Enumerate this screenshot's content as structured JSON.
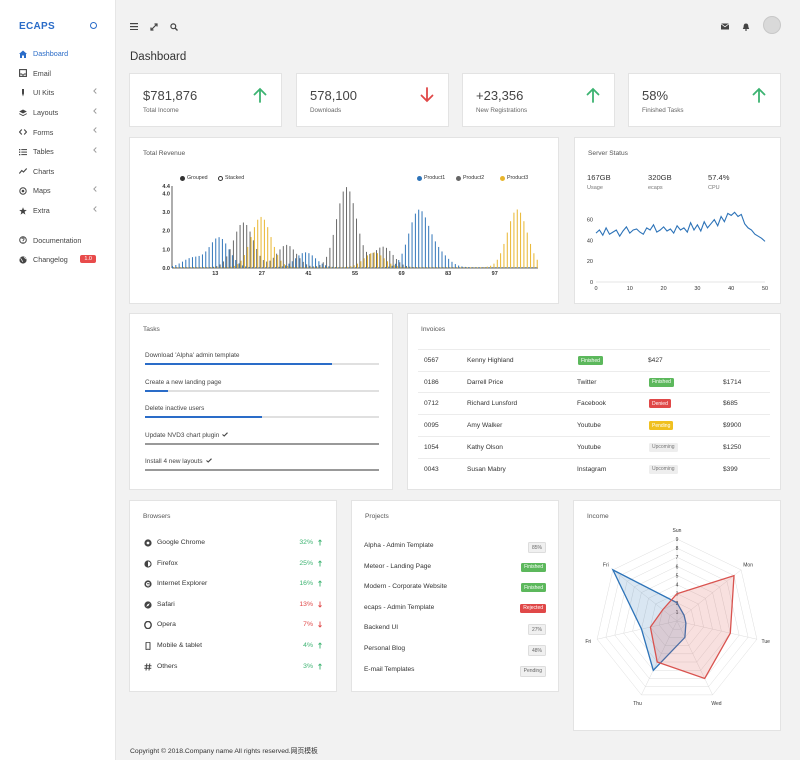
{
  "app": {
    "brand": "ECAPS"
  },
  "sidebar": {
    "items": [
      {
        "label": "Dashboard",
        "icon": "home-icon",
        "active": true,
        "chevron": false
      },
      {
        "label": "Email",
        "icon": "inbox-icon",
        "active": false,
        "chevron": false
      },
      {
        "label": "UI Kits",
        "icon": "pen-icon",
        "active": false,
        "chevron": true
      },
      {
        "label": "Layouts",
        "icon": "layers-icon",
        "active": false,
        "chevron": true
      },
      {
        "label": "Forms",
        "icon": "code-icon",
        "active": false,
        "chevron": true
      },
      {
        "label": "Tables",
        "icon": "list-icon",
        "active": false,
        "chevron": true
      },
      {
        "label": "Charts",
        "icon": "line-chart-icon",
        "active": false,
        "chevron": false
      },
      {
        "label": "Maps",
        "icon": "target-icon",
        "active": false,
        "chevron": true
      },
      {
        "label": "Extra",
        "icon": "star-icon",
        "active": false,
        "chevron": true
      }
    ],
    "bottom": [
      {
        "label": "Documentation",
        "icon": "help-icon"
      },
      {
        "label": "Changelog",
        "icon": "globe-icon",
        "badge": "1.0"
      }
    ]
  },
  "page": {
    "title": "Dashboard"
  },
  "stats": [
    {
      "value": "$781,876",
      "label": "Total Income",
      "trend": "up",
      "color": "#3cb371"
    },
    {
      "value": "578,100",
      "label": "Downloads",
      "trend": "down",
      "color": "#e04848"
    },
    {
      "value": "+23,356",
      "label": "New Registrations",
      "trend": "up",
      "color": "#3cb371"
    },
    {
      "value": "58%",
      "label": "Finished Tasks",
      "trend": "up",
      "color": "#3cb371"
    }
  ],
  "revenue": {
    "title": "Total Revenue",
    "modes": [
      "Grouped",
      "Stacked"
    ],
    "legend": [
      {
        "name": "Product1",
        "color": "#2d73b8"
      },
      {
        "name": "Product2",
        "color": "#666666"
      },
      {
        "name": "Product3",
        "color": "#e8b52c"
      }
    ]
  },
  "server": {
    "title": "Server Status",
    "metrics": [
      {
        "value": "167GB",
        "label": "Usage"
      },
      {
        "value": "320GB",
        "label": "ecaps"
      },
      {
        "value": "57.4%",
        "label": "CPU"
      }
    ]
  },
  "tasks": {
    "title": "Tasks",
    "items": [
      {
        "label": "Download 'Alpha' admin template",
        "progress": 0.8,
        "done": false
      },
      {
        "label": "Create a new landing page",
        "progress": 0.1,
        "done": false
      },
      {
        "label": "Delete inactive users",
        "progress": 0.5,
        "done": false
      },
      {
        "label": "Update NVD3 chart plugin",
        "progress": 1.0,
        "done": true
      },
      {
        "label": "Install 4 new layouts",
        "progress": 1.0,
        "done": true
      }
    ]
  },
  "invoices": {
    "title": "Invoices",
    "rows": [
      {
        "id": "0567",
        "name": "Kenny Highland",
        "source": "",
        "status": "Finished",
        "status_color": "#5cb85c",
        "amount": "$427",
        "shifted": true
      },
      {
        "id": "0186",
        "name": "Darrell Price",
        "source": "Twitter",
        "status": "Finished",
        "status_color": "#5cb85c",
        "amount": "$1714",
        "shifted": false
      },
      {
        "id": "0712",
        "name": "Richard Lunsford",
        "source": "Facebook",
        "status": "Denied",
        "status_color": "#e04848",
        "amount": "$685",
        "shifted": false
      },
      {
        "id": "0095",
        "name": "Amy Walker",
        "source": "Youtube",
        "status": "Pending",
        "status_color": "#f0c020",
        "amount": "$9900",
        "shifted": false
      },
      {
        "id": "1054",
        "name": "Kathy Olson",
        "source": "Youtube",
        "status": "Upcoming",
        "status_color": "#eeeeee",
        "amount": "$1250",
        "shifted": false
      },
      {
        "id": "0043",
        "name": "Susan Mabry",
        "source": "Instagram",
        "status": "Upcoming",
        "status_color": "#eeeeee",
        "amount": "$399",
        "shifted": false
      }
    ]
  },
  "browsers": {
    "title": "Browsers",
    "rows": [
      {
        "name": "Google Chrome",
        "icon": "chrome-icon",
        "pct": "32%",
        "trend": "up"
      },
      {
        "name": "Firefox",
        "icon": "firefox-icon",
        "pct": "25%",
        "trend": "up"
      },
      {
        "name": "Internet Explorer",
        "icon": "ie-icon",
        "pct": "16%",
        "trend": "up"
      },
      {
        "name": "Safari",
        "icon": "safari-icon",
        "pct": "13%",
        "trend": "down"
      },
      {
        "name": "Opera",
        "icon": "opera-icon",
        "pct": "7%",
        "trend": "down"
      },
      {
        "name": "Mobile & tablet",
        "icon": "mobile-icon",
        "pct": "4%",
        "trend": "up"
      },
      {
        "name": "Others",
        "icon": "hash-icon",
        "pct": "3%",
        "trend": "up"
      }
    ]
  },
  "projects": {
    "title": "Projects",
    "rows": [
      {
        "name": "Alpha - Admin Template",
        "badge": "85%",
        "style": "grey"
      },
      {
        "name": "Meteor - Landing Page",
        "badge": "Finished",
        "style": "green"
      },
      {
        "name": "Modern - Corporate Website",
        "badge": "Finished",
        "style": "green"
      },
      {
        "name": "ecaps - Admin Template",
        "badge": "Rejected",
        "style": "red"
      },
      {
        "name": "Backend UI",
        "badge": "27%",
        "style": "grey"
      },
      {
        "name": "Personal Blog",
        "badge": "48%",
        "style": "grey"
      },
      {
        "name": "E-mail Templates",
        "badge": "Pending",
        "style": "grey"
      }
    ]
  },
  "income": {
    "title": "Income"
  },
  "footer": {
    "text": "Copyright © 2018.Company name All rights reserved.网页模板"
  },
  "chart_data": [
    {
      "type": "bar",
      "title": "Total Revenue",
      "x_ticks": [
        13,
        27,
        41,
        55,
        69,
        83,
        97
      ],
      "y_ticks": [
        "0.0",
        "1.0",
        "2.0",
        "3.0",
        "4.0",
        "4.4"
      ],
      "ylim": [
        0,
        4.4
      ],
      "series": [
        {
          "name": "Product1",
          "peaks": [
            {
              "center": 6,
              "height": 0.5
            },
            {
              "center": 14,
              "height": 1.6
            },
            {
              "center": 40,
              "height": 0.8
            },
            {
              "center": 74,
              "height": 3.0
            },
            {
              "center": 80,
              "height": 0.7
            }
          ]
        },
        {
          "name": "Product2",
          "peaks": [
            {
              "center": 21,
              "height": 2.4
            },
            {
              "center": 34,
              "height": 1.2
            },
            {
              "center": 52,
              "height": 4.3
            },
            {
              "center": 63,
              "height": 1.1
            }
          ]
        },
        {
          "name": "Product3",
          "peaks": [
            {
              "center": 26,
              "height": 2.7
            },
            {
              "center": 60,
              "height": 0.8
            },
            {
              "center": 103,
              "height": 3.1
            }
          ]
        }
      ]
    },
    {
      "type": "line",
      "title": "Server Status",
      "x_ticks": [
        0,
        10,
        20,
        30,
        40,
        50
      ],
      "y_ticks": [
        0,
        20,
        40,
        60
      ],
      "xlim": [
        0,
        50
      ],
      "ylim": [
        0,
        75
      ],
      "series": [
        {
          "name": "",
          "x": [
            0,
            1,
            2,
            3,
            4,
            5,
            6,
            7,
            8,
            9,
            10,
            11,
            12,
            13,
            14,
            15,
            16,
            17,
            18,
            19,
            20,
            21,
            22,
            23,
            24,
            25,
            26,
            27,
            28,
            29,
            30,
            31,
            32,
            33,
            34,
            35,
            36,
            37,
            38,
            39,
            40,
            41,
            42,
            43,
            44,
            45,
            46,
            47,
            48,
            49,
            50
          ],
          "y": [
            47,
            50,
            45,
            52,
            46,
            48,
            50,
            44,
            49,
            53,
            47,
            50,
            51,
            48,
            46,
            52,
            50,
            55,
            48,
            50,
            53,
            49,
            51,
            47,
            54,
            50,
            52,
            48,
            57,
            50,
            55,
            49,
            58,
            52,
            56,
            60,
            54,
            63,
            58,
            66,
            64,
            67,
            63,
            65,
            56,
            52,
            50,
            46,
            44,
            42,
            39
          ]
        }
      ]
    },
    {
      "type": "radar",
      "title": "Income",
      "axes": [
        "Sun",
        "Mon",
        "Tue",
        "Wed",
        "Thu",
        "Fri",
        "Fri"
      ],
      "r_ticks": [
        1,
        2,
        3,
        4,
        5,
        6,
        7,
        8,
        9
      ],
      "rmax": 9,
      "series": [
        {
          "name": "",
          "color": "#2d73b8",
          "values": [
            2,
            1,
            1,
            2,
            6,
            4,
            9
          ]
        },
        {
          "name": "",
          "color": "#d9534f",
          "values": [
            3,
            8,
            6,
            7,
            5,
            3,
            2
          ]
        }
      ]
    }
  ]
}
